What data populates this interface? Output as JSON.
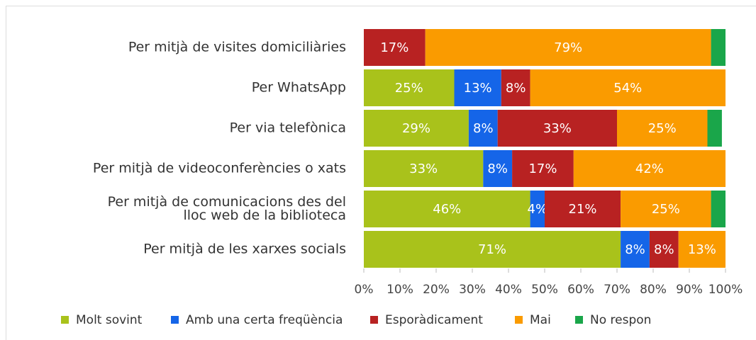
{
  "chart_data": {
    "type": "stacked_barh",
    "categories": [
      "Per mitjà de visites domiciliàries",
      "Per WhatsApp",
      "Per via telefònica",
      "Per mitjà de videoconferències o xats",
      "Per mitjà de comunicacions des del\nlloc web de la biblioteca",
      "Per mitjà de les xarxes socials"
    ],
    "series": [
      {
        "name": "Molt sovint",
        "color": "#a9c21b",
        "values": [
          0,
          25,
          29,
          33,
          46,
          71
        ],
        "value_labels": [
          null,
          "25%",
          "29%",
          "33%",
          "46%",
          "71%"
        ]
      },
      {
        "name": "Amb una certa freqüència",
        "color": "#1565e8",
        "values": [
          0,
          13,
          8,
          8,
          4,
          8
        ],
        "value_labels": [
          null,
          "13%",
          "8%",
          "8%",
          "4%",
          "8%"
        ]
      },
      {
        "name": "Esporàdicament",
        "color": "#b82222",
        "values": [
          17,
          8,
          33,
          17,
          21,
          8
        ],
        "value_labels": [
          "17%",
          "8%",
          "33%",
          "17%",
          "21%",
          "8%"
        ]
      },
      {
        "name": "Mai",
        "color": "#fa9b00",
        "values": [
          79,
          54,
          25,
          42,
          25,
          13
        ],
        "value_labels": [
          "79%",
          "54%",
          "25%",
          "42%",
          "25%",
          "13%"
        ]
      },
      {
        "name": "No respon",
        "color": "#1aa64a",
        "values": [
          4,
          0,
          4,
          0,
          4,
          0
        ],
        "value_labels": [
          null,
          null,
          null,
          null,
          null,
          null
        ]
      }
    ],
    "xlim": [
      0,
      100
    ],
    "xticks": [
      {
        "value": 0,
        "label": "0%"
      },
      {
        "value": 10,
        "label": "10%"
      },
      {
        "value": 20,
        "label": "20%"
      },
      {
        "value": 30,
        "label": "30%"
      },
      {
        "value": 40,
        "label": "40%"
      },
      {
        "value": 50,
        "label": "50%"
      },
      {
        "value": 60,
        "label": "60%"
      },
      {
        "value": 70,
        "label": "70%"
      },
      {
        "value": 80,
        "label": "80%"
      },
      {
        "value": 90,
        "label": "90%"
      },
      {
        "value": 100,
        "label": "100%"
      }
    ],
    "legend": "bottom"
  }
}
